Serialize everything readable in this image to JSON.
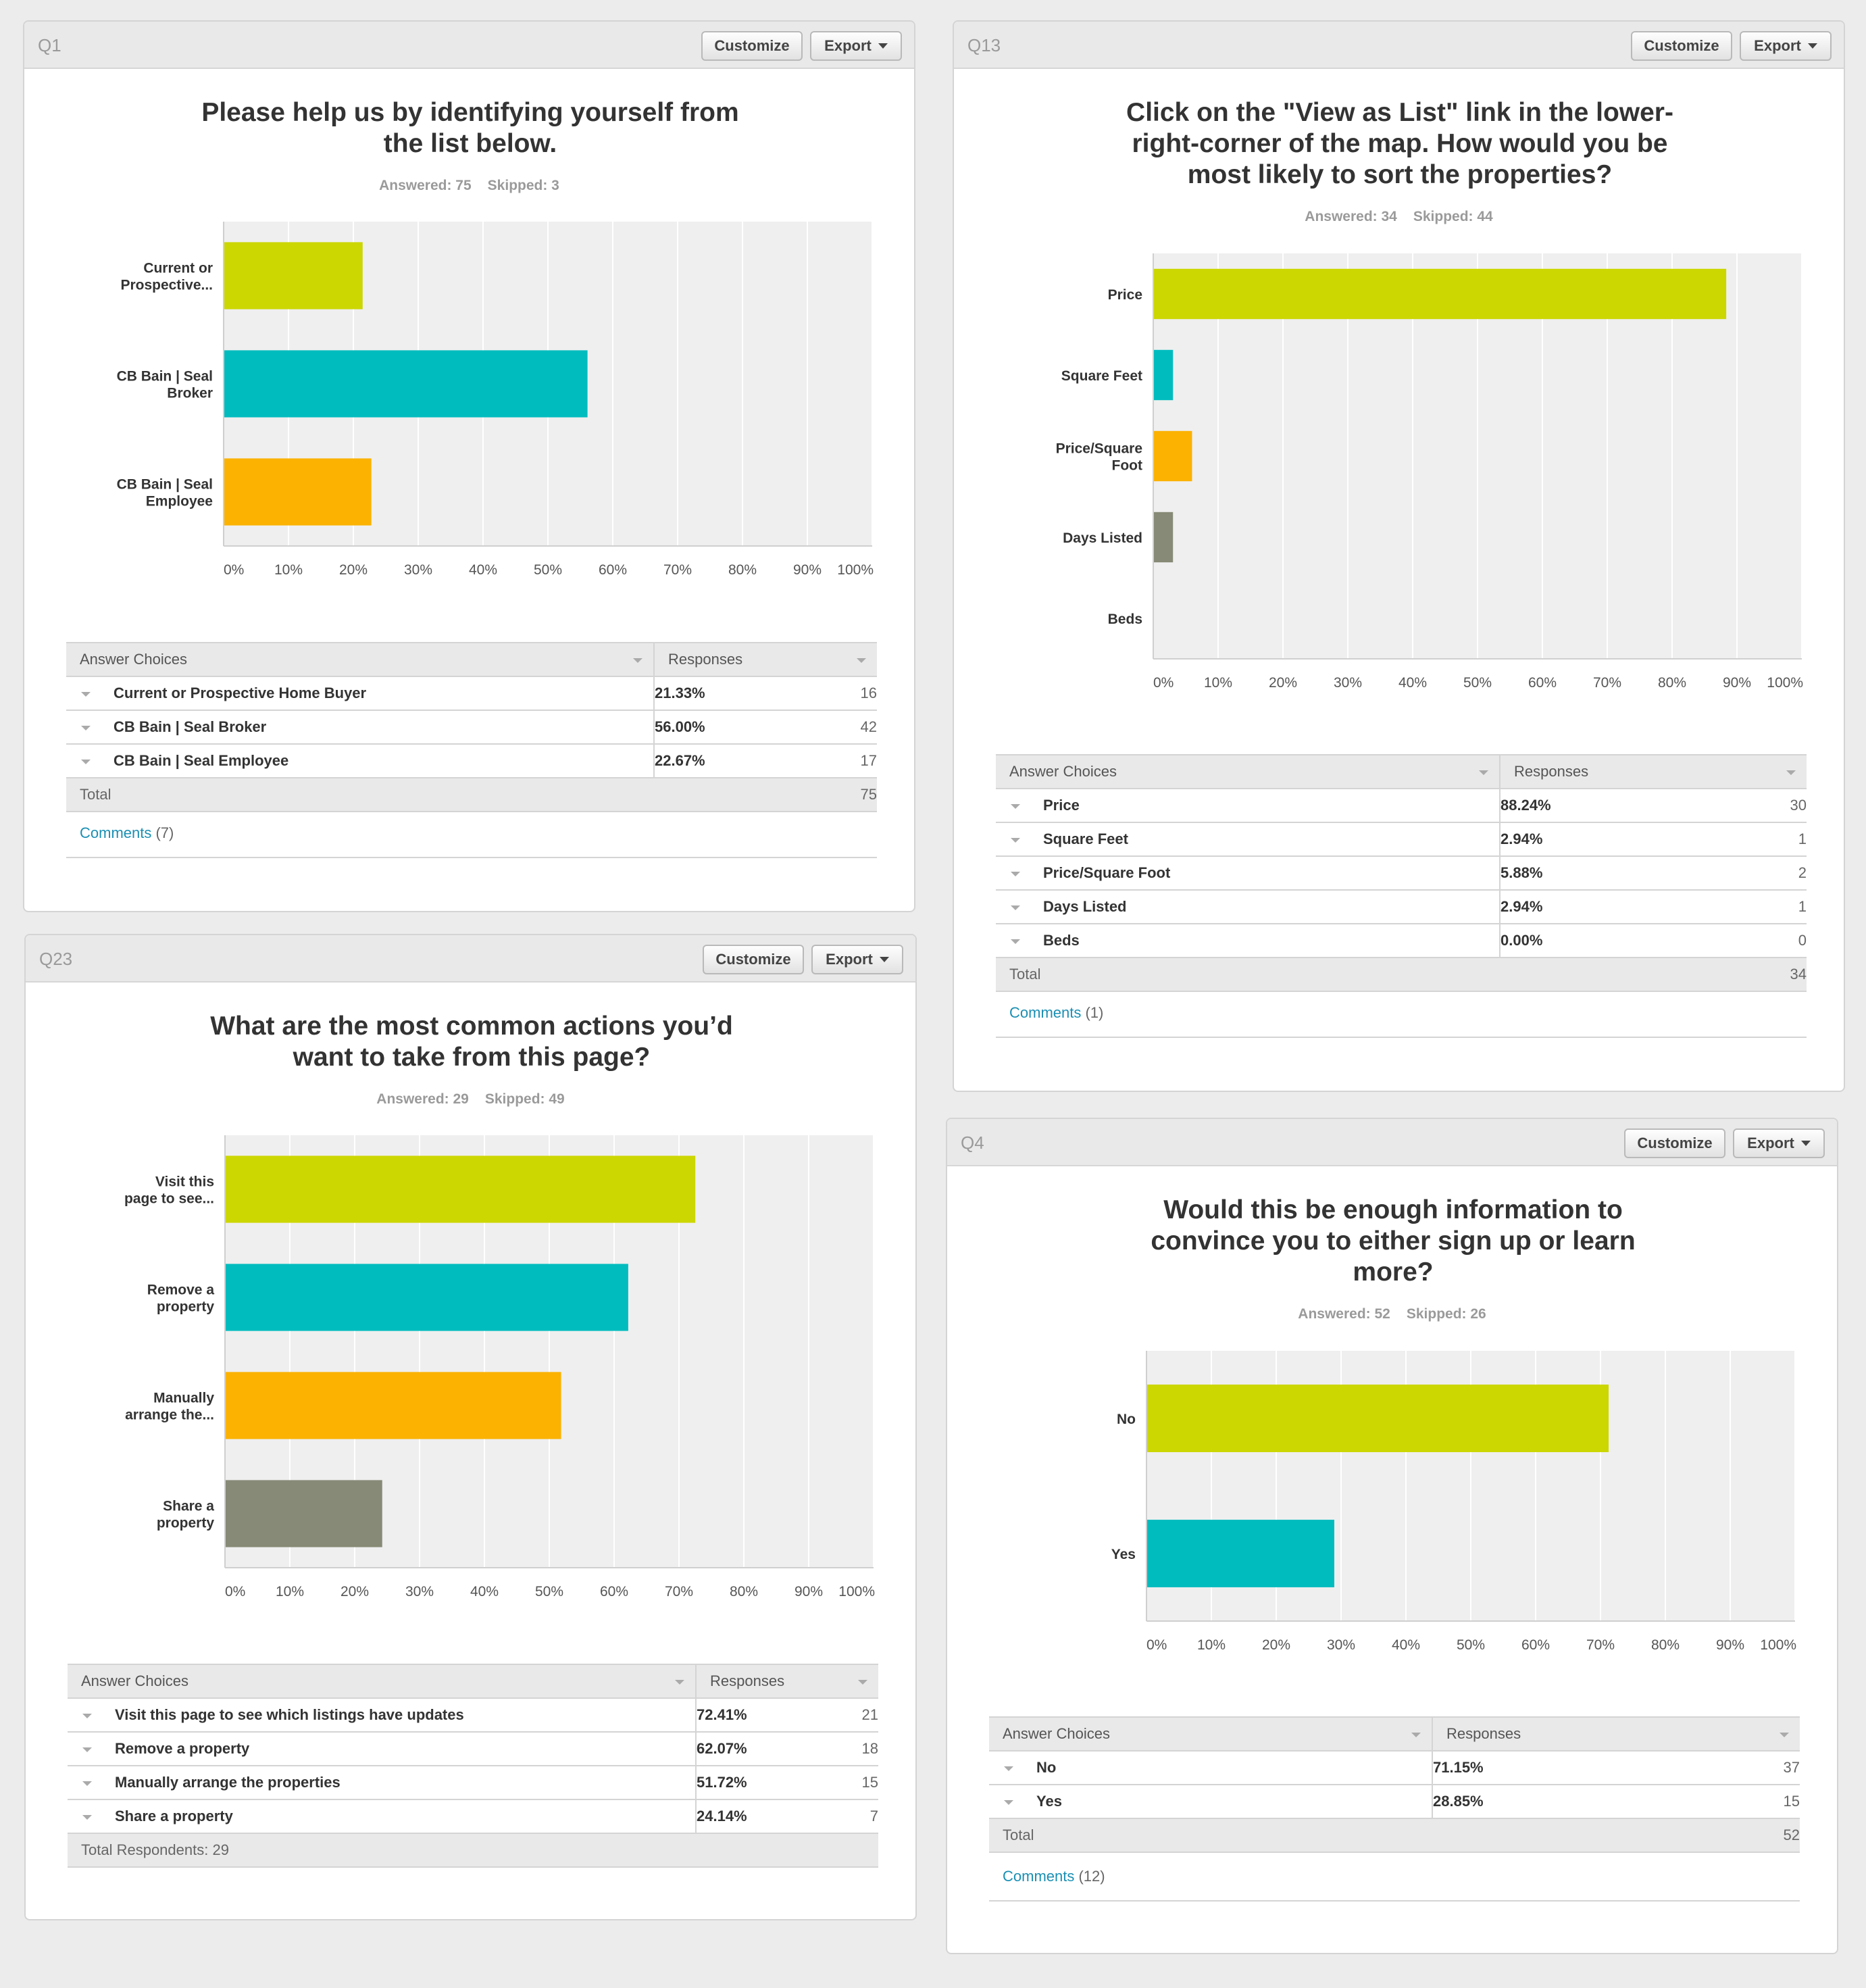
{
  "buttons": {
    "customize": "Customize",
    "export": "Export"
  },
  "panels": [
    {
      "id": "q1",
      "qnum": "Q1",
      "title_lines": [
        "Please help us by identifying yourself from",
        "the list below."
      ],
      "answered": "Answered: 75",
      "skipped": "Skipped: 3",
      "table_header": {
        "choices": "Answer Choices",
        "responses": "Responses"
      },
      "rows": [
        {
          "choice": "Current or Prospective Home Buyer",
          "percent": "21.33%",
          "count": "16"
        },
        {
          "choice": "CB Bain | Seal Broker",
          "percent": "56.00%",
          "count": "42"
        },
        {
          "choice": "CB Bain | Seal Employee",
          "percent": "22.67%",
          "count": "17"
        }
      ],
      "total": {
        "label": "Total",
        "count": "75"
      },
      "comments": {
        "label": "Comments",
        "count": "(7)"
      }
    },
    {
      "id": "q13",
      "qnum": "Q13",
      "title_lines": [
        "Click on the \"View as List\" link in the lower-",
        "right-corner of the map. How would you be",
        "most likely to sort the properties?"
      ],
      "answered": "Answered: 34",
      "skipped": "Skipped: 44",
      "table_header": {
        "choices": "Answer Choices",
        "responses": "Responses"
      },
      "rows": [
        {
          "choice": "Price",
          "percent": "88.24%",
          "count": "30"
        },
        {
          "choice": "Square Feet",
          "percent": "2.94%",
          "count": "1"
        },
        {
          "choice": "Price/Square Foot",
          "percent": "5.88%",
          "count": "2"
        },
        {
          "choice": "Days Listed",
          "percent": "2.94%",
          "count": "1"
        },
        {
          "choice": "Beds",
          "percent": "0.00%",
          "count": "0"
        }
      ],
      "total": {
        "label": "Total",
        "count": "34"
      },
      "comments": {
        "label": "Comments",
        "count": "(1)"
      }
    },
    {
      "id": "q23",
      "qnum": "Q23",
      "title_lines": [
        "What are the most common actions you’d",
        "want to take from this page?"
      ],
      "answered": "Answered: 29",
      "skipped": "Skipped: 49",
      "table_header": {
        "choices": "Answer Choices",
        "responses": "Responses"
      },
      "rows": [
        {
          "choice": "Visit this page to see which listings have updates",
          "percent": "72.41%",
          "count": "21"
        },
        {
          "choice": "Remove a property",
          "percent": "62.07%",
          "count": "18"
        },
        {
          "choice": "Manually arrange the properties",
          "percent": "51.72%",
          "count": "15"
        },
        {
          "choice": "Share a property",
          "percent": "24.14%",
          "count": "7"
        }
      ],
      "total": {
        "label": "Total Respondents: 29",
        "count": ""
      }
    },
    {
      "id": "q4",
      "qnum": "Q4",
      "title_lines": [
        "Would this be enough information to",
        "convince you to either sign up or learn",
        "more?"
      ],
      "answered": "Answered: 52",
      "skipped": "Skipped: 26",
      "table_header": {
        "choices": "Answer Choices",
        "responses": "Responses"
      },
      "rows": [
        {
          "choice": "No",
          "percent": "71.15%",
          "count": "37"
        },
        {
          "choice": "Yes",
          "percent": "28.85%",
          "count": "15"
        }
      ],
      "total": {
        "label": "Total",
        "count": "52"
      },
      "comments": {
        "label": "Comments",
        "count": "(12)"
      }
    }
  ],
  "chart_data": [
    {
      "type": "bar",
      "orientation": "horizontal",
      "panel": "Q1",
      "categories": [
        [
          "Current or",
          "Prospective..."
        ],
        [
          "CB Bain | Seal",
          "Broker"
        ],
        [
          "CB Bain | Seal",
          "Employee"
        ]
      ],
      "values": [
        21.33,
        56.0,
        22.67
      ],
      "colors": [
        "#ccd600",
        "#00bcbf",
        "#fbb200"
      ],
      "xlim": [
        0,
        100
      ],
      "xticks": [
        "0%",
        "10%",
        "20%",
        "30%",
        "40%",
        "50%",
        "60%",
        "70%",
        "80%",
        "90%",
        "100%"
      ],
      "grid": true
    },
    {
      "type": "bar",
      "orientation": "horizontal",
      "panel": "Q13",
      "categories": [
        [
          "Price"
        ],
        [
          "Square Feet"
        ],
        [
          "Price/Square",
          "Foot"
        ],
        [
          "Days Listed"
        ],
        [
          "Beds"
        ]
      ],
      "values": [
        88.24,
        2.94,
        5.88,
        2.94,
        0.0
      ],
      "colors": [
        "#ccd600",
        "#00bcbf",
        "#fbb200",
        "#868a76",
        "#868a76"
      ],
      "xlim": [
        0,
        100
      ],
      "xticks": [
        "0%",
        "10%",
        "20%",
        "30%",
        "40%",
        "50%",
        "60%",
        "70%",
        "80%",
        "90%",
        "100%"
      ],
      "grid": true
    },
    {
      "type": "bar",
      "orientation": "horizontal",
      "panel": "Q23",
      "categories": [
        [
          "Visit this",
          "page to see..."
        ],
        [
          "Remove a",
          "property"
        ],
        [
          "Manually",
          "arrange the..."
        ],
        [
          "Share a",
          "property"
        ]
      ],
      "values": [
        72.41,
        62.07,
        51.72,
        24.14
      ],
      "colors": [
        "#ccd600",
        "#00bcbf",
        "#fbb200",
        "#868a76"
      ],
      "xlim": [
        0,
        100
      ],
      "xticks": [
        "0%",
        "10%",
        "20%",
        "30%",
        "40%",
        "50%",
        "60%",
        "70%",
        "80%",
        "90%",
        "100%"
      ],
      "grid": true
    },
    {
      "type": "bar",
      "orientation": "horizontal",
      "panel": "Q4",
      "categories": [
        [
          "No"
        ],
        [
          "Yes"
        ]
      ],
      "values": [
        71.15,
        28.85
      ],
      "colors": [
        "#ccd600",
        "#00bcbf"
      ],
      "xlim": [
        0,
        100
      ],
      "xticks": [
        "0%",
        "10%",
        "20%",
        "30%",
        "40%",
        "50%",
        "60%",
        "70%",
        "80%",
        "90%",
        "100%"
      ],
      "grid": true
    }
  ]
}
